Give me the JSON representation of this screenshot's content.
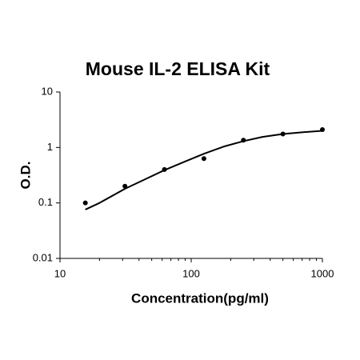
{
  "chart_data": {
    "type": "scatter",
    "title": "Mouse IL-2 ELISA Kit",
    "x_label": "Concentration(pg/ml)",
    "y_label": "O.D.",
    "x_log": true,
    "y_log": true,
    "xlim": [
      10,
      1000
    ],
    "ylim": [
      0.01,
      10
    ],
    "xticks": [
      10,
      100,
      1000
    ],
    "yticks": [
      0.01,
      0.1,
      1,
      10
    ],
    "series": [
      {
        "mode": "markers",
        "color": "#000000",
        "x": [
          15.6,
          31.25,
          62.5,
          125,
          250,
          500,
          1000
        ],
        "values": [
          0.1,
          0.2,
          0.4,
          0.63,
          1.35,
          1.75,
          2.1
        ]
      },
      {
        "mode": "line",
        "color": "#000000",
        "x": [
          15.6,
          20,
          31.25,
          45,
          62.5,
          90,
          125,
          180,
          250,
          350,
          500,
          700,
          1000
        ],
        "values": [
          0.076,
          0.1,
          0.18,
          0.27,
          0.39,
          0.56,
          0.77,
          1.05,
          1.3,
          1.55,
          1.75,
          1.88,
          2.0
        ]
      }
    ]
  }
}
